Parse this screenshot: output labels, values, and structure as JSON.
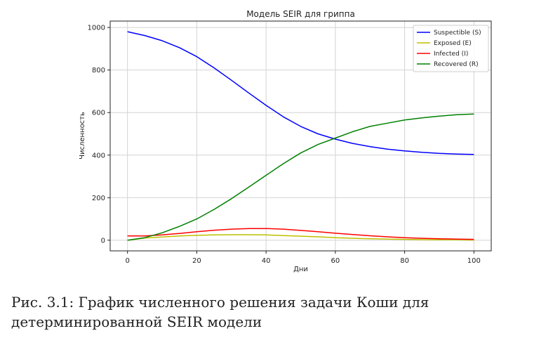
{
  "chart_data": {
    "type": "line",
    "title": "Модель SEIR для гриппа",
    "xlabel": "Дни",
    "ylabel": "Численность",
    "xlim": [
      -5,
      105
    ],
    "ylim": [
      -50,
      1030
    ],
    "xticks": [
      0,
      20,
      40,
      60,
      80,
      100
    ],
    "yticks": [
      0,
      200,
      400,
      600,
      800,
      1000
    ],
    "grid": true,
    "legend_position": "top-right",
    "x": [
      0,
      5,
      10,
      15,
      20,
      25,
      30,
      35,
      40,
      45,
      50,
      55,
      60,
      65,
      70,
      75,
      80,
      85,
      90,
      95,
      100
    ],
    "series": [
      {
        "name": "Suspectible (S)",
        "color": "#0000ff",
        "values": [
          980,
          962,
          938,
          905,
          863,
          810,
          752,
          692,
          634,
          580,
          535,
          500,
          475,
          455,
          440,
          428,
          420,
          413,
          408,
          405,
          403
        ]
      },
      {
        "name": "Exposed (E)",
        "color": "#bfbf00",
        "values": [
          0,
          10,
          15,
          20,
          23,
          25,
          26,
          26,
          25,
          22,
          19,
          16,
          12,
          9,
          7,
          5,
          4,
          3,
          2,
          2,
          1
        ]
      },
      {
        "name": "Infected (I)",
        "color": "#ff0000",
        "values": [
          20,
          20,
          25,
          32,
          40,
          47,
          52,
          55,
          55,
          52,
          46,
          40,
          33,
          27,
          21,
          16,
          12,
          9,
          7,
          5,
          4
        ]
      },
      {
        "name": "Recovered (R)",
        "color": "#008000",
        "values": [
          0,
          12,
          35,
          65,
          100,
          145,
          195,
          250,
          305,
          360,
          410,
          450,
          480,
          510,
          535,
          550,
          565,
          575,
          583,
          590,
          593
        ]
      }
    ]
  },
  "caption": "Рис. 3.1: График численного решения задачи Коши для детерминированной SEIR модели"
}
